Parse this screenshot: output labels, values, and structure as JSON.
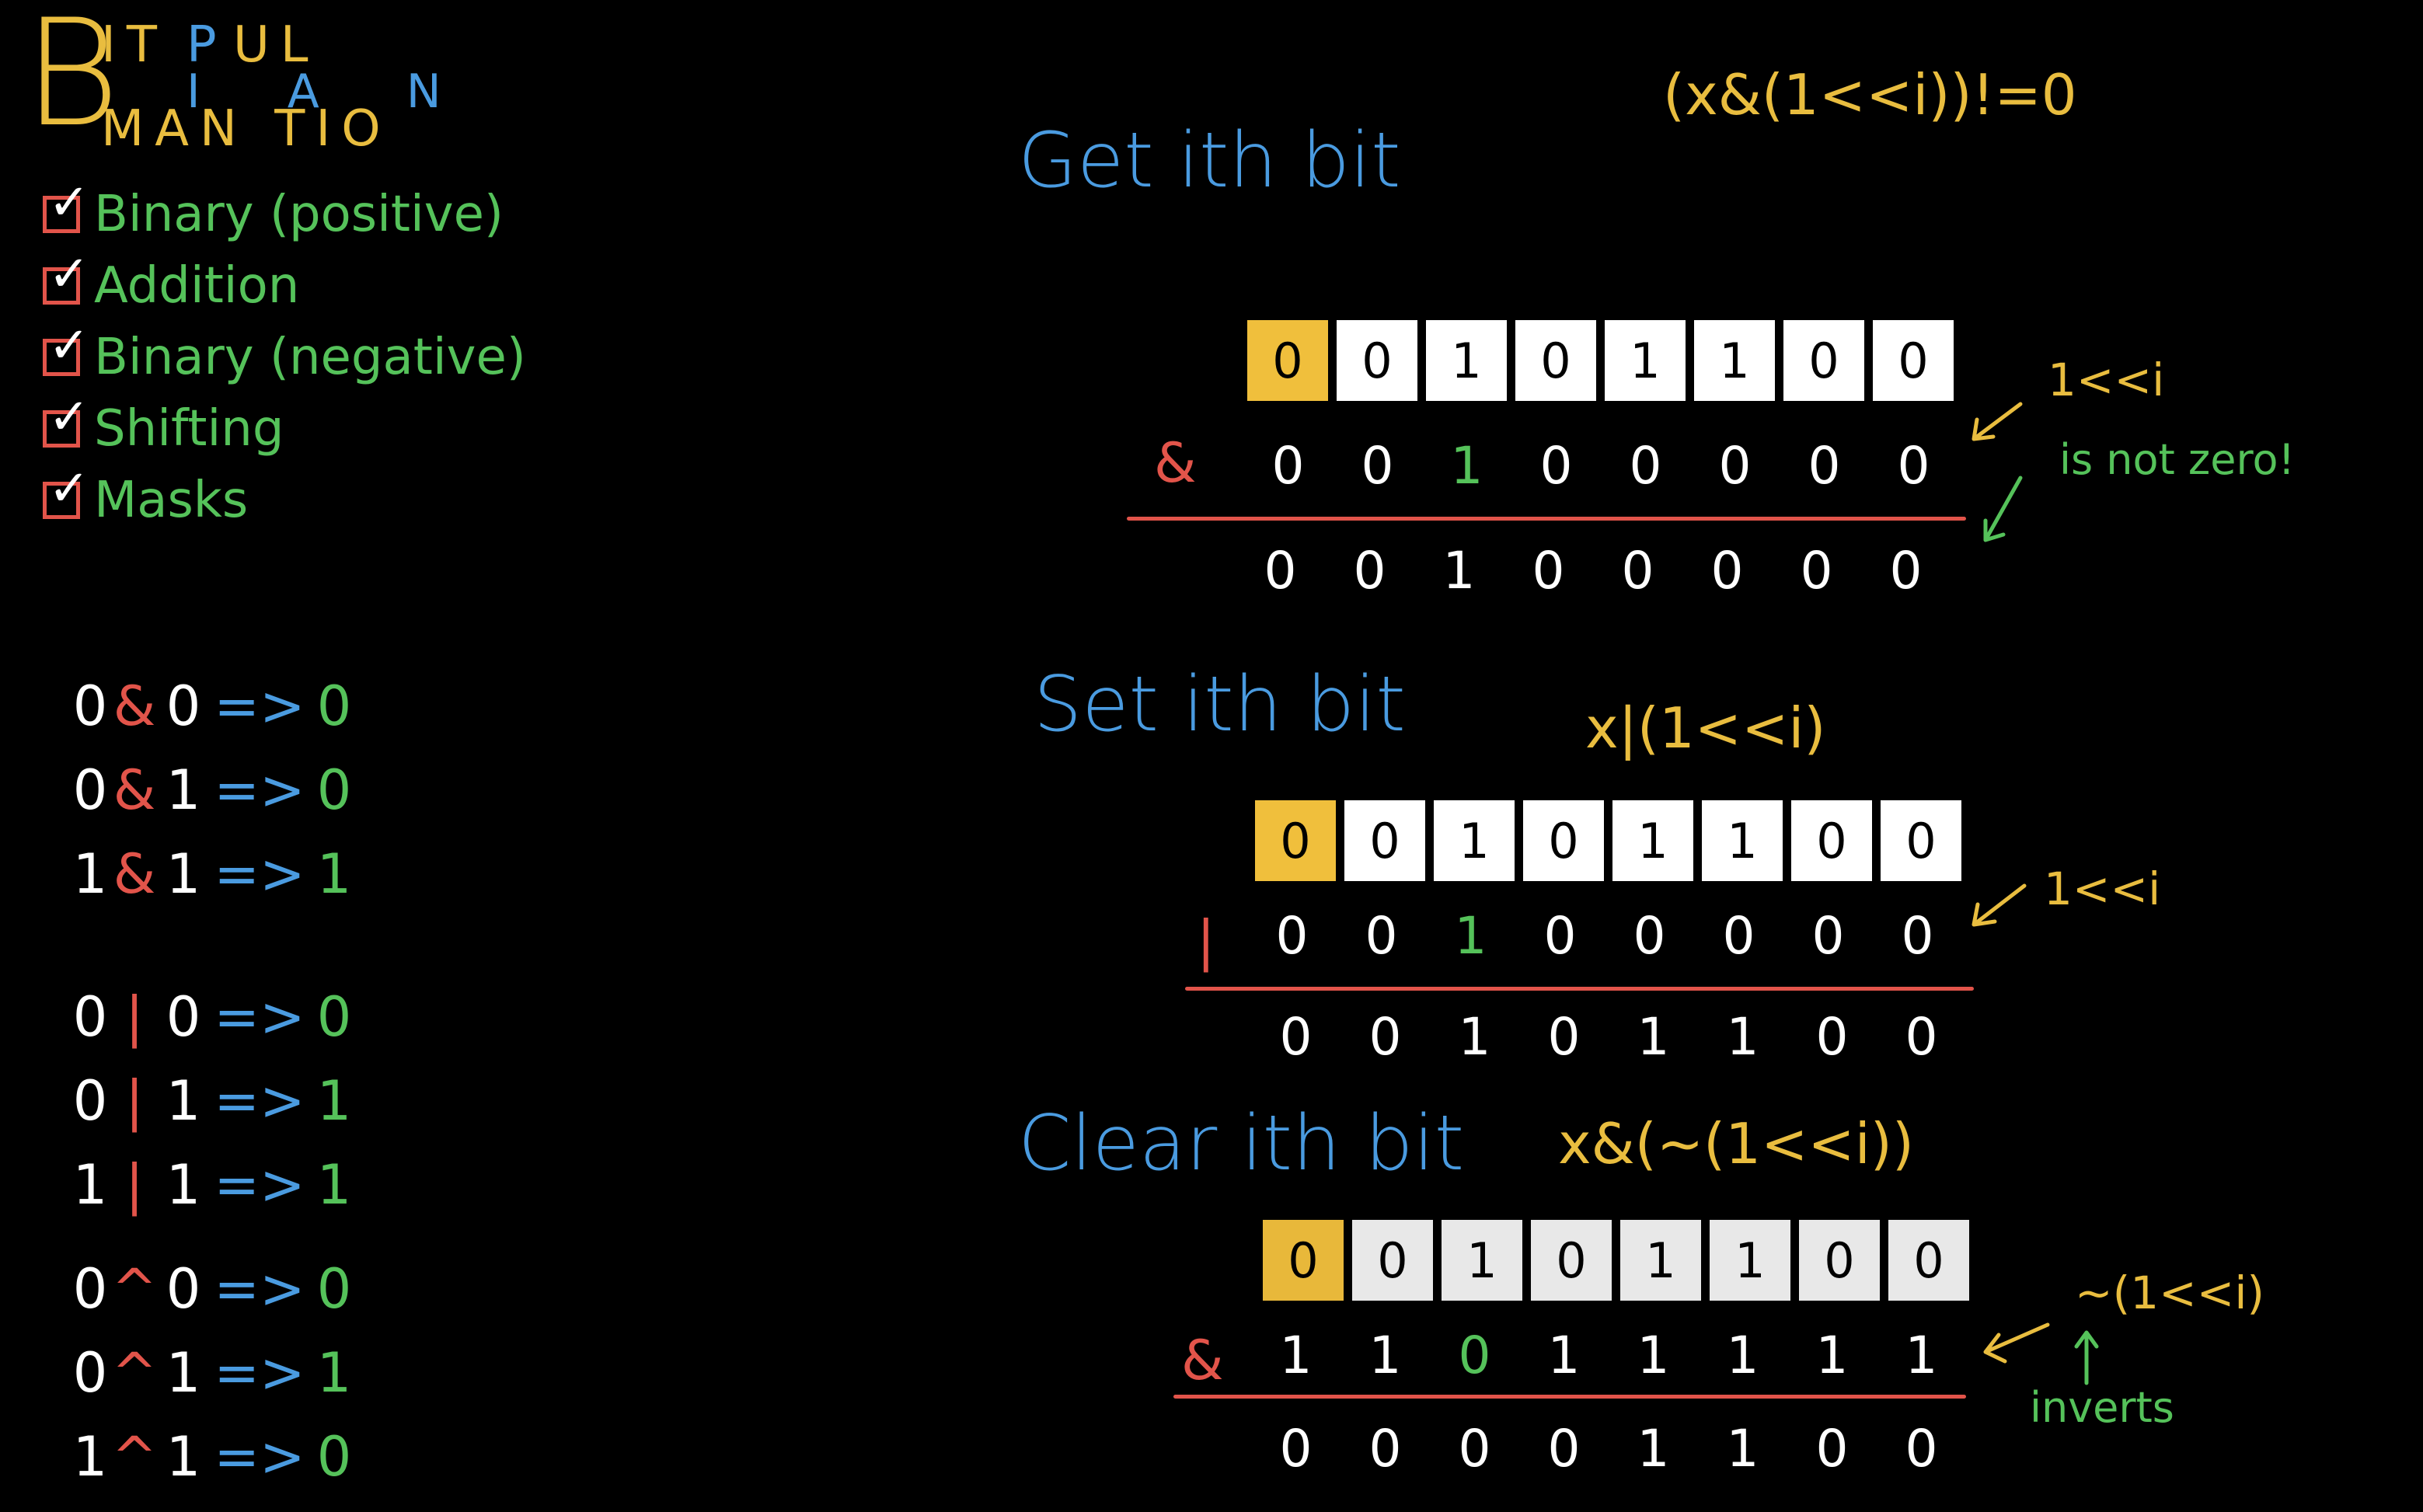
{
  "title": {
    "big_letter": "B",
    "row_top_1": "IT",
    "row_top_2": "P",
    "row_top_3": "UL",
    "row_mid": "IAN",
    "row_bot": "MAN TIO"
  },
  "checklist": [
    {
      "check": "✓",
      "label": "Binary (positive)"
    },
    {
      "check": "✓",
      "label": "Addition"
    },
    {
      "check": "✓",
      "label": "Binary (negative)"
    },
    {
      "check": "✓",
      "label": "Shifting"
    },
    {
      "check": "✓",
      "label": "Masks"
    }
  ],
  "arrow_symbol": "=>",
  "truth_tables": {
    "and": [
      {
        "a": "0",
        "op": "&",
        "b": "0",
        "r": "0"
      },
      {
        "a": "0",
        "op": "&",
        "b": "1",
        "r": "0"
      },
      {
        "a": "1",
        "op": "&",
        "b": "1",
        "r": "1"
      }
    ],
    "or": [
      {
        "a": "0",
        "op": "|",
        "b": "0",
        "r": "0"
      },
      {
        "a": "0",
        "op": "|",
        "b": "1",
        "r": "1"
      },
      {
        "a": "1",
        "op": "|",
        "b": "1",
        "r": "1"
      }
    ],
    "xor": [
      {
        "a": "0",
        "op": "^",
        "b": "0",
        "r": "0"
      },
      {
        "a": "0",
        "op": "^",
        "b": "1",
        "r": "1"
      },
      {
        "a": "1",
        "op": "^",
        "b": "1",
        "r": "0"
      }
    ]
  },
  "get_bit": {
    "title": "Get ith bit",
    "formula": "(x&(1<<i))!=0",
    "cells": [
      "0",
      "0",
      "1",
      "0",
      "1",
      "1",
      "0",
      "0"
    ],
    "op": "&",
    "mask": [
      "0",
      "0",
      "1",
      "0",
      "0",
      "0",
      "0",
      "0"
    ],
    "result": [
      "0",
      "0",
      "1",
      "0",
      "0",
      "0",
      "0",
      "0"
    ],
    "note_mask": "1<<i",
    "note_result": "is not zero!"
  },
  "set_bit": {
    "title": "Set ith bit",
    "formula": "x|(1<<i)",
    "cells": [
      "0",
      "0",
      "1",
      "0",
      "1",
      "1",
      "0",
      "0"
    ],
    "op": "|",
    "mask": [
      "0",
      "0",
      "1",
      "0",
      "0",
      "0",
      "0",
      "0"
    ],
    "result": [
      "0",
      "0",
      "1",
      "0",
      "1",
      "1",
      "0",
      "0"
    ],
    "note_mask": "1<<i"
  },
  "clear_bit": {
    "title": "Clear ith bit",
    "formula": "x&(~(1<<i))",
    "cells": [
      "0",
      "0",
      "1",
      "0",
      "1",
      "1",
      "0",
      "0"
    ],
    "op": "&",
    "mask": [
      "1",
      "1",
      "0",
      "1",
      "1",
      "1",
      "1",
      "1"
    ],
    "result": [
      "0",
      "0",
      "0",
      "0",
      "1",
      "1",
      "0",
      "0"
    ],
    "note_mask": "~(1<<i)",
    "note_invert": "inverts"
  },
  "colors": {
    "background": "#000000",
    "blue": "#4a9be0",
    "green": "#55c25a",
    "red": "#e2544a",
    "yellow": "#e9bd3f"
  }
}
